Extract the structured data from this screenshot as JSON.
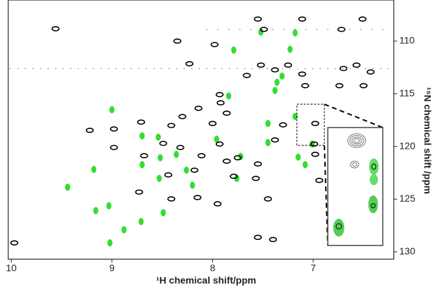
{
  "chart_data": {
    "type": "scatter",
    "x_label": "¹H chemical shift/ppm",
    "y_label": "¹⁵N chemical shift /ppm",
    "xlim": [
      10.03,
      6.2
    ],
    "xticks": [
      10,
      9,
      8,
      7
    ],
    "ylim": [
      130.7,
      106.1
    ],
    "yticks": [
      110,
      115,
      120,
      125,
      130
    ],
    "y_axis_side": "right",
    "series": [
      {
        "color": "#33dd33",
        "x": [
          7.79,
          7.52,
          7.18,
          7.23,
          9.0,
          9.44,
          9.16,
          8.71,
          8.7,
          9.18,
          8.52,
          8.36,
          8.26,
          8.7,
          7.96,
          7.72,
          7.45,
          7.45,
          7.18,
          7.08,
          7.38,
          7.36,
          7.31,
          7.84,
          7.76,
          9.03,
          9.02,
          8.88,
          8.49,
          8.2,
          8.54,
          8.53,
          7.15,
          7.01
        ],
        "values": [
          110.85,
          109.15,
          109.22,
          110.78,
          116.51,
          123.87,
          126.09,
          127.13,
          118.99,
          122.18,
          121.07,
          120.75,
          122.25,
          121.73,
          119.31,
          120.94,
          119.64,
          117.82,
          117.16,
          121.73,
          114.69,
          113.91,
          113.32,
          115.21,
          123.03,
          125.63,
          129.15,
          127.91,
          126.29,
          123.68,
          119.12,
          123.03,
          121.01,
          119.77
        ]
      },
      {
        "color": "#000000",
        "x": [
          9.56,
          8.35,
          7.98,
          7.55,
          7.49,
          7.11,
          6.72,
          6.51,
          7.66,
          7.93,
          7.92,
          7.86,
          8.0,
          8.14,
          8.3,
          8.41,
          8.71,
          8.98,
          8.98,
          8.49,
          8.68,
          8.32,
          8.11,
          7.93,
          7.86,
          7.75,
          8.18,
          7.79,
          8.44,
          8.73,
          8.41,
          8.15,
          7.95,
          7.45,
          7.57,
          7.55,
          7.38,
          7.3,
          6.98,
          6.99,
          6.98,
          6.94,
          7.4,
          7.55,
          9.97,
          9.22,
          8.23,
          7.52,
          7.38,
          7.25,
          7.11,
          7.08,
          6.7,
          6.57,
          6.43,
          6.5,
          6.74
        ],
        "values": [
          108.83,
          110.0,
          110.33,
          107.91,
          108.89,
          107.91,
          108.89,
          107.91,
          113.26,
          115.08,
          115.86,
          116.84,
          117.82,
          116.38,
          117.16,
          118.01,
          117.69,
          118.34,
          120.1,
          119.71,
          120.88,
          120.1,
          120.88,
          119.77,
          121.4,
          121.07,
          122.25,
          122.83,
          122.7,
          124.33,
          124.98,
          124.85,
          125.44,
          124.98,
          123.03,
          121.66,
          119.38,
          117.95,
          117.82,
          119.77,
          120.75,
          123.22,
          128.83,
          128.63,
          129.15,
          118.47,
          112.15,
          112.28,
          112.73,
          112.28,
          113.13,
          114.23,
          112.6,
          112.28,
          112.93,
          114.23,
          114.23
        ]
      }
    ]
  }
}
